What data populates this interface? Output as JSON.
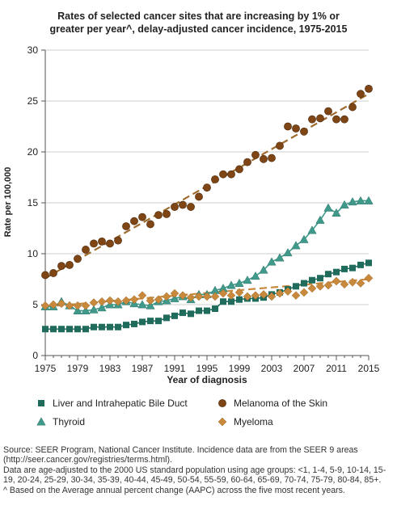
{
  "chart_data": {
    "type": "line",
    "title_lines": [
      "Rates of selected cancer sites that are increasing by 1% or",
      "greater per year^, delay-adjusted cancer incidence, 1975-2015"
    ],
    "xlabel": "Year of diagnosis",
    "ylabel": "Rate per 100,000",
    "xlim": [
      1975,
      2015
    ],
    "ylim": [
      0,
      30
    ],
    "x_ticks": [
      1975,
      1979,
      1983,
      1987,
      1991,
      1995,
      1999,
      2003,
      2007,
      2011,
      2015
    ],
    "y_ticks": [
      0,
      5,
      10,
      15,
      20,
      25,
      30
    ],
    "grid": "horizontal",
    "legend_position": "bottom",
    "series": [
      {
        "name": "Liver and Intrahepatic Bile Duct",
        "marker": "square",
        "color": "#1f6b5c",
        "x": [
          1975,
          1976,
          1977,
          1978,
          1979,
          1980,
          1981,
          1982,
          1983,
          1984,
          1985,
          1986,
          1987,
          1988,
          1989,
          1990,
          1991,
          1992,
          1993,
          1994,
          1995,
          1996,
          1997,
          1998,
          1999,
          2000,
          2001,
          2002,
          2003,
          2004,
          2005,
          2006,
          2007,
          2008,
          2009,
          2010,
          2011,
          2012,
          2013,
          2014,
          2015
        ],
        "values": [
          2.6,
          2.6,
          2.6,
          2.6,
          2.6,
          2.6,
          2.8,
          2.8,
          2.8,
          2.8,
          3.0,
          3.1,
          3.3,
          3.4,
          3.4,
          3.7,
          3.9,
          4.2,
          4.1,
          4.4,
          4.4,
          4.6,
          5.3,
          5.3,
          5.5,
          5.6,
          5.6,
          5.7,
          6.0,
          6.2,
          6.5,
          6.8,
          7.1,
          7.4,
          7.6,
          8.0,
          8.2,
          8.5,
          8.6,
          8.9,
          9.1
        ]
      },
      {
        "name": "Melanoma of the Skin",
        "marker": "circle",
        "color": "#7f4515",
        "trend_color": "#9e6b2e",
        "x": [
          1975,
          1976,
          1977,
          1978,
          1979,
          1980,
          1981,
          1982,
          1983,
          1984,
          1985,
          1986,
          1987,
          1988,
          1989,
          1990,
          1991,
          1992,
          1993,
          1994,
          1995,
          1996,
          1997,
          1998,
          1999,
          2000,
          2001,
          2002,
          2003,
          2004,
          2005,
          2006,
          2007,
          2008,
          2009,
          2010,
          2011,
          2012,
          2013,
          2014,
          2015
        ],
        "values": [
          7.9,
          8.1,
          8.8,
          8.9,
          9.5,
          10.4,
          11.0,
          11.2,
          11.0,
          11.3,
          12.7,
          13.2,
          13.6,
          12.9,
          13.8,
          13.9,
          14.6,
          14.8,
          14.6,
          15.6,
          16.5,
          17.3,
          17.8,
          17.8,
          18.3,
          19.0,
          19.7,
          19.3,
          19.4,
          20.6,
          22.5,
          22.3,
          22.0,
          23.2,
          23.3,
          24.0,
          23.2,
          23.2,
          24.4,
          25.7,
          26.2
        ],
        "trend": {
          "x": [
            1975,
            2015
          ],
          "values": [
            7.6,
            25.7
          ]
        }
      },
      {
        "name": "Thyroid",
        "marker": "triangle",
        "color": "#3f9a8c",
        "x": [
          1975,
          1976,
          1977,
          1978,
          1979,
          1980,
          1981,
          1982,
          1983,
          1984,
          1985,
          1986,
          1987,
          1988,
          1989,
          1990,
          1991,
          1992,
          1993,
          1994,
          1995,
          1996,
          1997,
          1998,
          1999,
          2000,
          2001,
          2002,
          2003,
          2004,
          2005,
          2006,
          2007,
          2008,
          2009,
          2010,
          2011,
          2012,
          2013,
          2014,
          2015
        ],
        "values": [
          4.8,
          4.8,
          5.3,
          4.9,
          4.4,
          4.4,
          4.5,
          4.7,
          5.0,
          5.0,
          5.3,
          5.1,
          5.0,
          4.9,
          5.3,
          5.4,
          5.6,
          5.8,
          5.5,
          6.0,
          6.0,
          6.4,
          6.6,
          6.9,
          7.1,
          7.4,
          7.8,
          8.4,
          9.2,
          9.6,
          10.1,
          10.8,
          11.4,
          12.3,
          13.3,
          14.5,
          14.0,
          14.8,
          15.1,
          15.2,
          15.2
        ]
      },
      {
        "name": "Myeloma",
        "marker": "diamond",
        "color": "#c8893c",
        "x": [
          1975,
          1976,
          1977,
          1978,
          1979,
          1980,
          1981,
          1982,
          1983,
          1984,
          1985,
          1986,
          1987,
          1988,
          1989,
          1990,
          1991,
          1992,
          1993,
          1994,
          1995,
          1996,
          1997,
          1998,
          1999,
          2000,
          2001,
          2002,
          2003,
          2004,
          2005,
          2006,
          2007,
          2008,
          2009,
          2010,
          2011,
          2012,
          2013,
          2014,
          2015
        ],
        "values": [
          4.9,
          5.0,
          5.1,
          4.9,
          4.9,
          4.9,
          5.2,
          5.3,
          5.4,
          5.3,
          5.4,
          5.5,
          5.9,
          5.4,
          5.5,
          5.8,
          6.1,
          5.9,
          5.7,
          5.8,
          5.8,
          5.8,
          6.1,
          5.9,
          6.2,
          5.8,
          5.9,
          6.0,
          5.8,
          6.1,
          6.3,
          5.9,
          6.2,
          6.6,
          6.8,
          6.9,
          7.3,
          7.0,
          7.2,
          7.1,
          7.6
        ],
        "trend": {
          "x": [
            1975,
            2015
          ],
          "values": [
            4.8,
            7.5
          ]
        }
      }
    ]
  },
  "legend": {
    "items": [
      {
        "label": "Liver and Intrahepatic Bile Duct",
        "marker": "square",
        "color": "#1f6b5c"
      },
      {
        "label": "Melanoma of the Skin",
        "marker": "circle",
        "color": "#7f4515"
      },
      {
        "label": "Thyroid",
        "marker": "triangle",
        "color": "#3f9a8c"
      },
      {
        "label": "Myeloma",
        "marker": "diamond",
        "color": "#c8893c"
      }
    ]
  },
  "footnotes": {
    "source": "Source: SEER Program, National Cancer Institute. Incidence data are from the SEER 9 areas (http://seer.cancer.gov/registries/terms.html).",
    "age_adjustment": "Data are age-adjusted to the 2000 US standard population using age groups: <1, 1-4, 5-9, 10-14, 15-19, 20-24, 25-29, 30-34, 35-39, 40-44, 45-49, 50-54, 55-59, 60-64, 65-69, 70-74, 75-79, 80-84, 85+.",
    "aapc": "^ Based on the Average annual percent change (AAPC) across the five most recent years."
  }
}
